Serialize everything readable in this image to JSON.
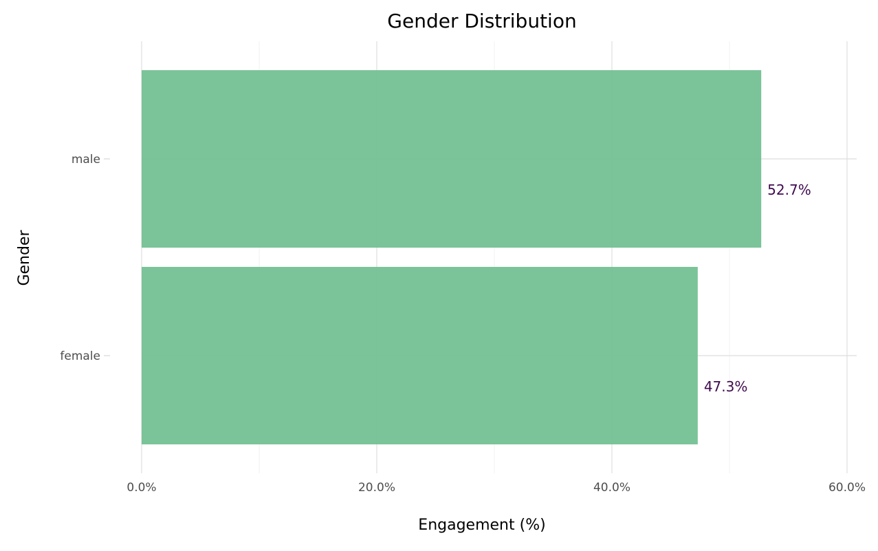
{
  "chart_data": {
    "type": "bar",
    "orientation": "horizontal",
    "title": "Gender Distribution",
    "xlabel": "Engagement (%)",
    "ylabel": "Gender",
    "categories": [
      "male",
      "female"
    ],
    "values": [
      52.7,
      47.3
    ],
    "data_labels": [
      "52.7%",
      "47.3%"
    ],
    "xlim": [
      0,
      60
    ],
    "x_ticks": [
      0,
      20,
      40,
      60
    ],
    "x_tick_labels": [
      "0.0%",
      "20.0%",
      "40.0%",
      "60.0%"
    ],
    "grid": true,
    "legend": "none",
    "colors": {
      "bar": "#77c196",
      "label": "#3f0a4f"
    }
  }
}
